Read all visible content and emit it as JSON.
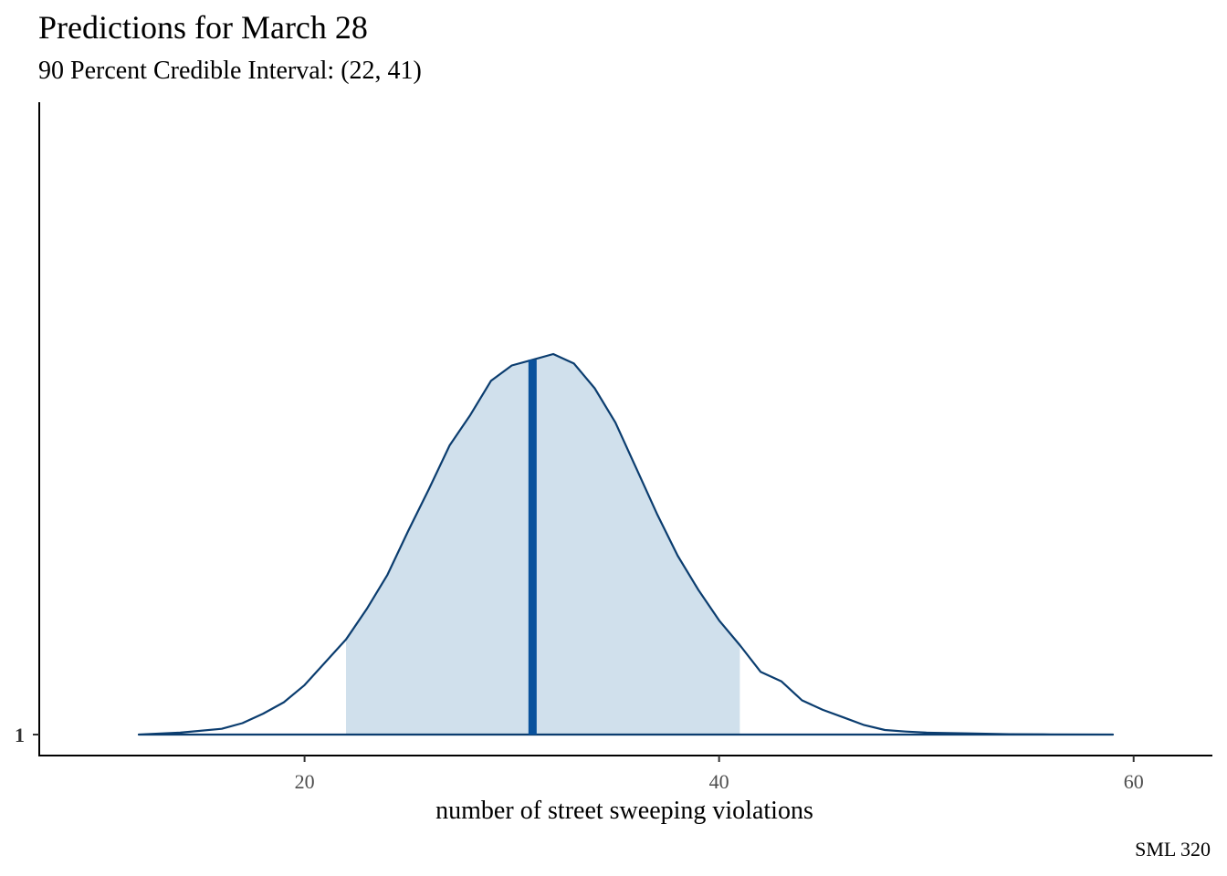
{
  "chart_data": {
    "type": "area",
    "title": "Predictions for March 28",
    "subtitle": "90 Percent Credible Interval: (22, 41)",
    "xlabel": "number of street sweeping violations",
    "ylabel": "",
    "caption": "SML 320",
    "x_ticks": [
      20,
      40,
      60
    ],
    "y_ticks": [
      "1"
    ],
    "xlim": [
      7.2,
      63.8
    ],
    "grid": false,
    "interval": {
      "low": 22,
      "high": 41,
      "level": "90 Percent"
    },
    "median": 31,
    "series": [
      {
        "x": [
          12,
          14,
          16,
          17,
          18,
          19,
          20,
          21,
          22,
          23,
          24,
          25,
          26,
          27,
          28,
          29,
          30,
          31,
          32,
          33,
          34,
          35,
          36,
          37,
          38,
          39,
          40,
          41,
          42,
          43,
          44,
          45,
          46,
          47,
          48,
          49,
          50,
          52,
          54,
          56,
          59
        ],
        "y": [
          0,
          0.005,
          0.015,
          0.03,
          0.055,
          0.085,
          0.13,
          0.19,
          0.25,
          0.33,
          0.42,
          0.535,
          0.645,
          0.76,
          0.84,
          0.93,
          0.97,
          0.985,
          1.0,
          0.975,
          0.91,
          0.82,
          0.7,
          0.58,
          0.47,
          0.38,
          0.3,
          0.235,
          0.165,
          0.14,
          0.09,
          0.065,
          0.045,
          0.025,
          0.012,
          0.008,
          0.005,
          0.003,
          0.001,
          0.0005,
          0
        ]
      }
    ],
    "colors": {
      "line": "#0b3d6f",
      "fill": "#d0e0ec",
      "median": "#08519c",
      "axis": "#000000",
      "tick": "#333333"
    }
  }
}
